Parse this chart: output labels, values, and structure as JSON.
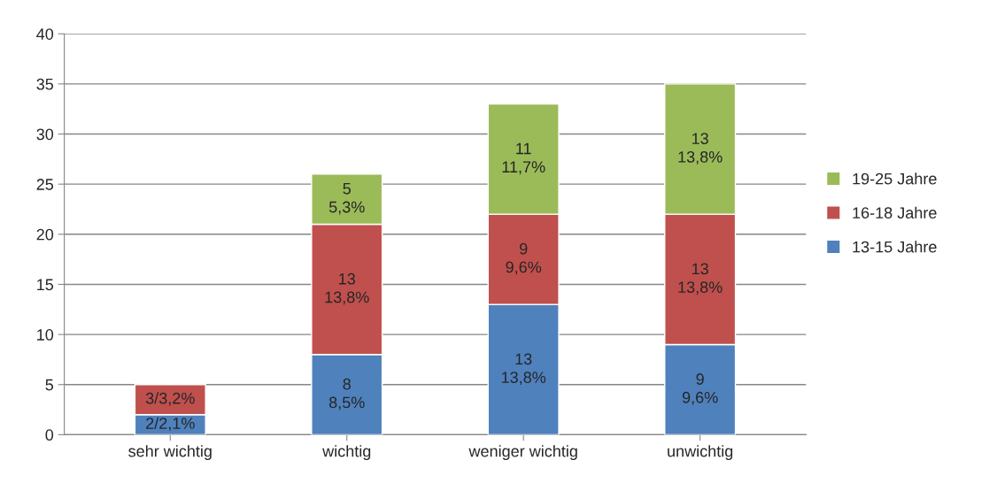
{
  "chart_data": {
    "type": "bar",
    "stacked": true,
    "categories": [
      "sehr wichtig",
      "wichtig",
      "weniger wichtig",
      "unwichtig"
    ],
    "series": [
      {
        "name": "13-15 Jahre",
        "color": "#4f81bd",
        "values": [
          2,
          8,
          13,
          9
        ],
        "value_labels": [
          "2/2,1%",
          "8\n8,5%",
          "13\n13,8%",
          "9\n9,6%"
        ]
      },
      {
        "name": "16-18 Jahre",
        "color": "#c0504d",
        "values": [
          3,
          13,
          9,
          13
        ],
        "value_labels": [
          "3/3,2%",
          "13\n13,8%",
          "9\n9,6%",
          "13\n13,8%"
        ]
      },
      {
        "name": "19-25 Jahre",
        "color": "#9bbb59",
        "values": [
          null,
          5,
          11,
          13
        ],
        "value_labels": [
          null,
          "5\n5,3%",
          "11\n11,7%",
          "13\n13,8%"
        ]
      }
    ],
    "ylim": [
      0,
      40
    ],
    "yticks": [
      0,
      5,
      10,
      15,
      20,
      25,
      30,
      35,
      40
    ],
    "grid": "y",
    "legend": "right"
  }
}
